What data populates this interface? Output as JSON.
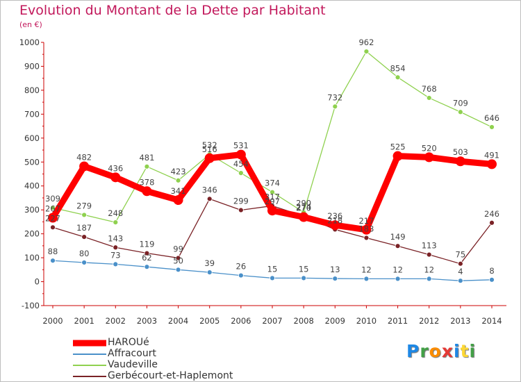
{
  "header": {
    "title": "Evolution du Montant de la Dette par Habitant",
    "unit": "(en €)"
  },
  "brand": {
    "name": "Proxiti",
    "letters": [
      {
        "ch": "P",
        "color": "#1e88e5"
      },
      {
        "ch": "r",
        "color": "#43a047"
      },
      {
        "ch": "o",
        "color": "#fb8c00"
      },
      {
        "ch": "x",
        "color": "#e53935"
      },
      {
        "ch": "i",
        "color": "#1e88e5"
      },
      {
        "ch": "t",
        "color": "#fdd835"
      },
      {
        "ch": "i",
        "color": "#43a047"
      }
    ]
  },
  "chart_data": {
    "type": "line",
    "title": "Evolution du Montant de la Dette par Habitant",
    "subtitle": "(en €)",
    "xlabel": "",
    "ylabel": "",
    "x": [
      2000,
      2001,
      2002,
      2003,
      2004,
      2005,
      2006,
      2007,
      2008,
      2009,
      2010,
      2011,
      2012,
      2013,
      2014
    ],
    "ylim": [
      -100,
      1000
    ],
    "yticks": [
      -100,
      0,
      100,
      200,
      300,
      400,
      500,
      600,
      700,
      800,
      900,
      1000
    ],
    "grid": false,
    "legend_position": "bottom-left",
    "series": [
      {
        "name": "HAROUé",
        "color": "#ff0000",
        "width": 9,
        "marker": 7,
        "values": [
          267,
          482,
          436,
          378,
          341,
          516,
          531,
          297,
          270,
          236,
          217,
          525,
          520,
          503,
          491
        ],
        "labels": [
          "267",
          "482",
          "436",
          "378",
          "341",
          "516",
          "531",
          "297",
          "270",
          "236",
          "217",
          "525",
          "520",
          "503",
          "491"
        ]
      },
      {
        "name": "Affracourt",
        "color": "#4a90c9",
        "width": 1.3,
        "marker": 3.5,
        "values": [
          88,
          80,
          73,
          62,
          50,
          39,
          26,
          15,
          15,
          13,
          12,
          12,
          12,
          4,
          8
        ],
        "labels": [
          "88",
          "80",
          "73",
          "62",
          "50",
          "39",
          "26",
          "15",
          "15",
          "13",
          "12",
          "12",
          "12",
          "4",
          "8"
        ]
      },
      {
        "name": "Vaudeville",
        "color": "#8fd14f",
        "width": 1.3,
        "marker": 3.5,
        "values": [
          309,
          279,
          248,
          481,
          423,
          532,
          454,
          374,
          290,
          732,
          962,
          854,
          768,
          709,
          646
        ],
        "labels": [
          "309",
          "279",
          "248",
          "481",
          "423",
          "532",
          "454",
          "374",
          "290",
          "732",
          "962",
          "854",
          "768",
          "709",
          "646"
        ]
      },
      {
        "name": "Gerbécourt-et-Haplemont",
        "color": "#7a2226",
        "width": 1.3,
        "marker": 3.5,
        "values": [
          227,
          187,
          143,
          119,
          99,
          346,
          299,
          317,
          274,
          218,
          183,
          149,
          113,
          75,
          246
        ],
        "labels": [
          "227",
          "187",
          "143",
          "119",
          "99",
          "346",
          "299",
          "317",
          "274",
          "218",
          "183",
          "149",
          "113",
          "75",
          "246"
        ]
      }
    ]
  }
}
